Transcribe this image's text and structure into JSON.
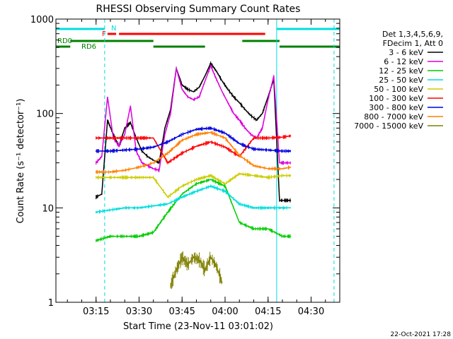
{
  "chart_data": {
    "type": "line",
    "title": "RHESSI Observing Summary Count Rates",
    "xlabel": "Start Time (23-Nov-11 03:01:02)",
    "ylabel": "Count Rate (s⁻¹ detector⁻¹)",
    "y_scale": "log",
    "ylim": [
      1,
      1000
    ],
    "xlim": [
      "03:01",
      "04:40"
    ],
    "x_ticks": [
      "03:15",
      "03:30",
      "03:45",
      "04:00",
      "04:15",
      "04:30"
    ],
    "y_ticks": [
      "1",
      "10",
      "100",
      "1000"
    ],
    "legend_position": "right",
    "legend_header": [
      "Det 1,3,4,5,6,9,",
      "FDecim 1, Att 0"
    ],
    "footer": "22-Oct-2021 17:28",
    "series": [
      {
        "name": "3 - 6 keV",
        "color": "#000000",
        "x": [
          "03:15",
          "03:17",
          "03:19",
          "03:21",
          "03:23",
          "03:25",
          "03:27",
          "03:29",
          "03:31",
          "03:33",
          "03:35",
          "03:37",
          "03:39",
          "03:41",
          "03:43",
          "03:45",
          "03:47",
          "03:49",
          "03:51",
          "03:53",
          "03:55",
          "03:57",
          "03:59",
          "04:01",
          "04:03",
          "04:05",
          "04:07",
          "04:09",
          "04:11",
          "04:13",
          "04:15",
          "04:17",
          "04:19",
          "04:21",
          "04:23"
        ],
        "values": [
          13,
          14,
          85,
          60,
          45,
          70,
          80,
          55,
          40,
          35,
          32,
          30,
          70,
          110,
          300,
          200,
          180,
          170,
          190,
          250,
          340,
          280,
          220,
          180,
          150,
          130,
          110,
          95,
          85,
          100,
          150,
          230,
          12,
          12,
          12
        ]
      },
      {
        "name": "6 - 12 keV",
        "color": "#dd00dd",
        "x": [
          "03:15",
          "03:17",
          "03:19",
          "03:21",
          "03:23",
          "03:25",
          "03:27",
          "03:29",
          "03:31",
          "03:33",
          "03:35",
          "03:37",
          "03:39",
          "03:41",
          "03:43",
          "03:45",
          "03:47",
          "03:49",
          "03:51",
          "03:53",
          "03:55",
          "03:57",
          "03:59",
          "04:01",
          "04:03",
          "04:05",
          "04:07",
          "04:09",
          "04:11",
          "04:13",
          "04:15",
          "04:17",
          "04:19",
          "04:21",
          "04:23"
        ],
        "values": [
          30,
          35,
          150,
          55,
          45,
          60,
          120,
          40,
          30,
          28,
          26,
          25,
          60,
          100,
          300,
          180,
          150,
          140,
          150,
          220,
          320,
          230,
          170,
          130,
          100,
          85,
          70,
          60,
          55,
          70,
          140,
          250,
          30,
          30,
          30
        ]
      },
      {
        "name": "12 - 25 keV",
        "color": "#00cc00",
        "x": [
          "03:15",
          "03:20",
          "03:25",
          "03:30",
          "03:35",
          "03:40",
          "03:45",
          "03:50",
          "03:55",
          "04:00",
          "04:05",
          "04:10",
          "04:15",
          "04:20",
          "04:23"
        ],
        "values": [
          4.5,
          5,
          5,
          5,
          5.5,
          9,
          14,
          18,
          20,
          17,
          7,
          6,
          6,
          5,
          5
        ]
      },
      {
        "name": "25 - 50 keV",
        "color": "#00dddd",
        "x": [
          "03:15",
          "03:20",
          "03:25",
          "03:30",
          "03:35",
          "03:40",
          "03:45",
          "03:50",
          "03:55",
          "04:00",
          "04:05",
          "04:10",
          "04:15",
          "04:20",
          "04:23"
        ],
        "values": [
          9,
          9.5,
          10,
          10,
          10.5,
          11,
          13,
          15,
          17,
          15,
          11,
          10,
          10,
          10,
          10
        ]
      },
      {
        "name": "50 - 100 keV",
        "color": "#cccc00",
        "x": [
          "03:15",
          "03:20",
          "03:25",
          "03:30",
          "03:35",
          "03:40",
          "03:45",
          "03:50",
          "03:55",
          "04:00",
          "04:05",
          "04:10",
          "04:15",
          "04:20",
          "04:23"
        ],
        "values": [
          21,
          21,
          21,
          21,
          21,
          13,
          17,
          20,
          22,
          18,
          23,
          22,
          21,
          22,
          22
        ]
      },
      {
        "name": "100 - 300 keV",
        "color": "#ff0000",
        "x": [
          "03:15",
          "03:20",
          "03:25",
          "03:30",
          "03:35",
          "03:40",
          "03:45",
          "03:50",
          "03:55",
          "04:00",
          "04:05",
          "04:10",
          "04:15",
          "04:20",
          "04:23"
        ],
        "values": [
          55,
          55,
          55,
          55,
          55,
          30,
          38,
          45,
          50,
          44,
          35,
          55,
          55,
          56,
          58
        ]
      },
      {
        "name": "300 - 800 keV",
        "color": "#0000dd",
        "x": [
          "03:15",
          "03:20",
          "03:25",
          "03:30",
          "03:35",
          "03:40",
          "03:45",
          "03:50",
          "03:55",
          "04:00",
          "04:05",
          "04:10",
          "04:15",
          "04:20",
          "04:23"
        ],
        "values": [
          40,
          40,
          41,
          42,
          44,
          50,
          60,
          68,
          70,
          62,
          48,
          42,
          41,
          40,
          40
        ]
      },
      {
        "name": "800 - 7000 keV",
        "color": "#ff8000",
        "x": [
          "03:15",
          "03:20",
          "03:25",
          "03:30",
          "03:35",
          "03:40",
          "03:45",
          "03:50",
          "03:55",
          "04:00",
          "04:05",
          "04:10",
          "04:15",
          "04:20",
          "04:23"
        ],
        "values": [
          24,
          24,
          25,
          27,
          30,
          38,
          52,
          60,
          63,
          55,
          36,
          28,
          26,
          26,
          27
        ]
      },
      {
        "name": "7000 - 15000 keV",
        "color": "#808000",
        "x": [
          "03:41",
          "03:43",
          "03:45",
          "03:47",
          "03:49",
          "03:51",
          "03:53",
          "03:55",
          "03:57",
          "03:59"
        ],
        "values": [
          1.5,
          2.2,
          3,
          2.5,
          3,
          2.8,
          2.2,
          3,
          2.4,
          1.6
        ]
      }
    ],
    "observing_flags": [
      {
        "label": "N",
        "color": "#00dddd",
        "segments": [
          [
            "03:01",
            "03:18"
          ],
          [
            "04:18",
            "04:40"
          ]
        ]
      },
      {
        "label": "F",
        "color": "#ff0000",
        "segments": [
          [
            "03:19",
            "03:22"
          ],
          [
            "03:23",
            "04:14"
          ]
        ]
      },
      {
        "label": "RD0",
        "color": "#008000",
        "segments": [
          [
            "03:06",
            "03:35"
          ],
          [
            "04:06",
            "04:19"
          ]
        ]
      },
      {
        "label": "RD6",
        "color": "#008000",
        "segments": [
          [
            "03:01",
            "03:06"
          ],
          [
            "03:35",
            "03:53"
          ],
          [
            "04:19",
            "04:40"
          ]
        ]
      }
    ],
    "vertical_markers": [
      {
        "x": "03:18",
        "color": "#00dddd",
        "style": "dashed"
      },
      {
        "x": "04:18",
        "color": "#00dddd",
        "style": "solid"
      },
      {
        "x": "04:38",
        "color": "#00dddd",
        "style": "dashed"
      }
    ]
  }
}
